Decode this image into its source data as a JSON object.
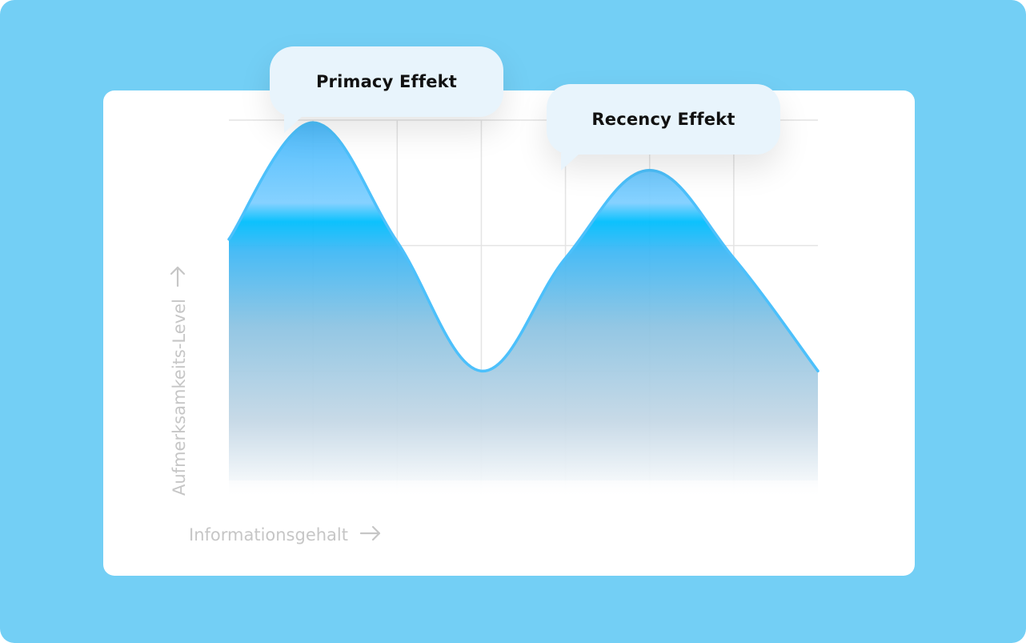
{
  "colors": {
    "outer_background": "#73cff5",
    "card_background": "#ffffff",
    "bubble_background": "#e8f4fc",
    "curve_stroke": "#4cc0fb",
    "fill_top": "#00bdfd",
    "grid": "#e4e4e4",
    "axis_label": "#c6c6c6"
  },
  "annotations": {
    "primacy": "Primacy Effekt",
    "recency": "Recency Effekt"
  },
  "axes": {
    "xlabel": "Informationsgehalt",
    "ylabel": "Aufmerksamkeits-Level",
    "x_arrow_icon": "arrow-right-icon",
    "y_arrow_icon": "arrow-up-icon"
  },
  "chart_data": {
    "type": "area",
    "title": "",
    "xlabel": "Informationsgehalt",
    "ylabel": "Aufmerksamkeits-Level",
    "grid": true,
    "xlim": [
      0,
      7
    ],
    "ylim": [
      0,
      3
    ],
    "series": [
      {
        "x": [
          0,
          1,
          2,
          3,
          4,
          5,
          6,
          7
        ],
        "y": [
          2.05,
          2.98,
          2.03,
          1.0,
          1.9,
          2.6,
          1.9,
          1.0
        ]
      }
    ],
    "annotations": [
      "Primacy Effekt",
      "Recency Effekt"
    ]
  }
}
